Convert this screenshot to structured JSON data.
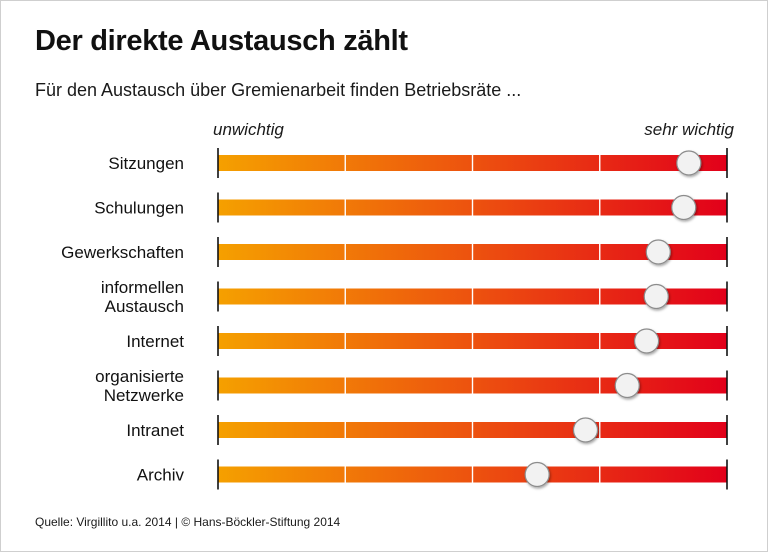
{
  "title": "Der direkte Austausch zählt",
  "subtitle": "Für den Austausch über Gremienarbeit finden Betriebsräte ...",
  "source": "Quelle: Virgillito u.a. 2014 | © Hans-Böckler-Stiftung 2014",
  "colors": {
    "gradient_start": "#f5a000",
    "gradient_mid": "#ec4a10",
    "gradient_end": "#e2001a",
    "marker_fill": "#f2f2f2",
    "marker_stroke": "#8c8c8c"
  },
  "chart_data": {
    "type": "bar",
    "subtype": "rating-scale",
    "scale_min_label": "unwichtig",
    "scale_max_label": "sehr wichtig",
    "xlim": [
      0,
      1
    ],
    "gridlines": 4,
    "categories": [
      [
        "Sitzungen"
      ],
      [
        "Schulungen"
      ],
      [
        "Gewerkschaften"
      ],
      [
        "informellen",
        "Austausch"
      ],
      [
        "Internet"
      ],
      [
        "organisierte",
        "Netzwerke"
      ],
      [
        "Intranet"
      ],
      [
        "Archiv"
      ]
    ],
    "values": [
      0.925,
      0.915,
      0.865,
      0.861,
      0.842,
      0.804,
      0.722,
      0.627
    ]
  }
}
